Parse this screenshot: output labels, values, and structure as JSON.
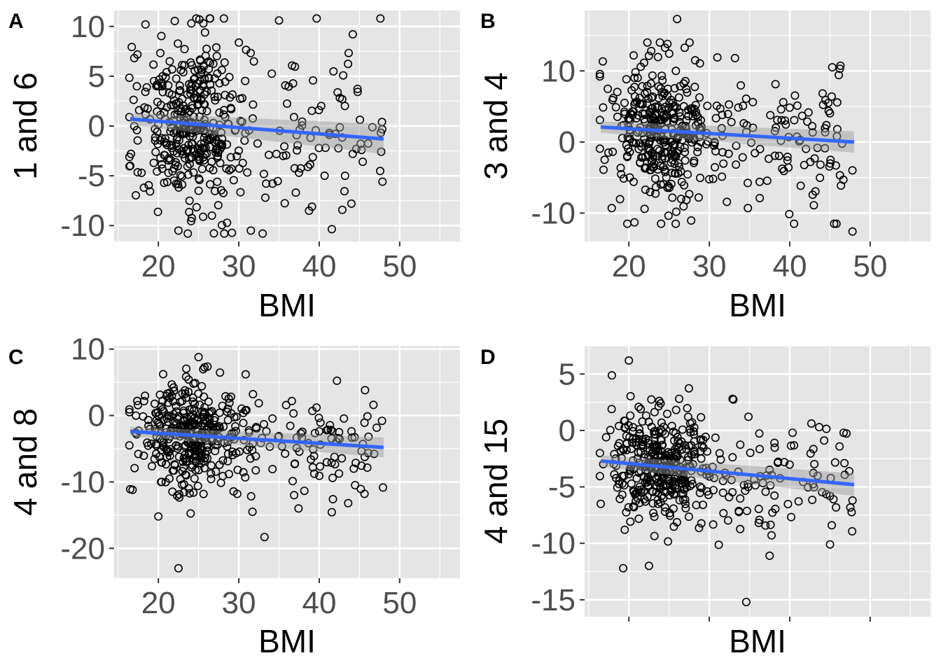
{
  "figure": {
    "background": "#ffffff",
    "panel_bg": "#e5e5e5",
    "grid_color": "#ffffff",
    "point_color": "#000000",
    "fit_color": "#3366ff",
    "band_color": "#999999"
  },
  "chart_data": [
    {
      "type": "scatter",
      "tag": "A",
      "xlabel": "BMI",
      "ylabel": "1 and 6",
      "xlim": [
        14.5,
        57.5
      ],
      "ylim": [
        -11.6,
        11.6
      ],
      "xticks": [
        20,
        30,
        40,
        50
      ],
      "xtick_labels": [
        "20",
        "30",
        "40",
        "50"
      ],
      "yticks": [
        -10,
        -5,
        0,
        5,
        10
      ],
      "ytick_labels": [
        "-10",
        "-5",
        "0",
        "5",
        "10"
      ],
      "fit": {
        "x": [
          16.5,
          48
        ],
        "y": [
          0.7,
          -1.3
        ],
        "band_lo": [
          0.1,
          -2.8
        ],
        "band_hi": [
          1.3,
          0.2
        ]
      },
      "points": {
        "n": 460,
        "seed": 11,
        "center": 24,
        "spread": 3.2,
        "tail": 0.22,
        "tailmax": 48,
        "ysd": 4.3,
        "ymin": -10.8,
        "ymax": 10.8
      },
      "extra_points": [
        [
          18.4,
          10.2
        ],
        [
          25.1,
          10.7
        ],
        [
          35,
          10.6
        ],
        [
          16.5,
          -4
        ],
        [
          22.5,
          -10.5
        ],
        [
          31.5,
          -10.5
        ],
        [
          33.3,
          -7.2
        ],
        [
          44,
          -7.8
        ],
        [
          47.8,
          0.4
        ],
        [
          16.6,
          -2.8
        ]
      ]
    },
    {
      "type": "scatter",
      "tag": "B",
      "xlabel": "BMI",
      "ylabel": "3 and 4",
      "xlim": [
        14.5,
        57.5
      ],
      "ylim": [
        -14,
        18.5
      ],
      "xticks": [
        20,
        30,
        40,
        50
      ],
      "xtick_labels": [
        "20",
        "30",
        "40",
        "50"
      ],
      "yticks": [
        -10,
        0,
        10
      ],
      "ytick_labels": [
        "-10",
        "0",
        "10"
      ],
      "fit": {
        "x": [
          16.5,
          48
        ],
        "y": [
          2.1,
          0
        ],
        "band_lo": [
          1.3,
          -1.5
        ],
        "band_hi": [
          2.9,
          1.5
        ]
      },
      "points": {
        "n": 460,
        "seed": 23,
        "center": 24,
        "spread": 3.2,
        "tail": 0.22,
        "tailmax": 48,
        "ysd": 4.5,
        "ymin": -11.5,
        "ymax": 14
      },
      "extra_points": [
        [
          26,
          17.3
        ],
        [
          47.8,
          -12.6
        ],
        [
          20.7,
          -11.3
        ],
        [
          34.8,
          -9.3
        ],
        [
          43,
          -8.9
        ],
        [
          44.8,
          5.5
        ],
        [
          33.2,
          11.8
        ],
        [
          31,
          11.9
        ],
        [
          22.3,
          14
        ],
        [
          24.8,
          13.8
        ]
      ]
    },
    {
      "type": "scatter",
      "tag": "C",
      "xlabel": "BMI",
      "ylabel": "4 and 8",
      "xlim": [
        14.5,
        57.5
      ],
      "ylim": [
        -24.5,
        10.5
      ],
      "xticks": [
        20,
        30,
        40,
        50
      ],
      "xtick_labels": [
        "20",
        "30",
        "40",
        "50"
      ],
      "yticks": [
        -20,
        -10,
        0,
        10
      ],
      "ytick_labels": [
        "-20",
        "-10",
        "0",
        "10"
      ],
      "fit": {
        "x": [
          16.5,
          48
        ],
        "y": [
          -2.4,
          -4.8
        ],
        "band_lo": [
          -3.1,
          -6.3
        ],
        "band_hi": [
          -1.7,
          -3.3
        ]
      },
      "points": {
        "n": 460,
        "seed": 37,
        "center": 24,
        "spread": 3.2,
        "tail": 0.22,
        "tailmax": 48,
        "ysd": 4.2,
        "ymin": -15,
        "ymax": 9
      },
      "extra_points": [
        [
          22.5,
          -23
        ],
        [
          20,
          -15.2
        ],
        [
          33.2,
          -18.3
        ],
        [
          31.7,
          -14.5
        ],
        [
          25,
          8.8
        ],
        [
          47.8,
          -0.8
        ],
        [
          43.6,
          -13.2
        ],
        [
          41.7,
          -12.6
        ],
        [
          16.5,
          -11.1
        ],
        [
          16.8,
          -11.2
        ]
      ]
    },
    {
      "type": "scatter",
      "tag": "D",
      "xlabel": "BMI",
      "ylabel": "4 and 15",
      "xlim": [
        14.5,
        57.5
      ],
      "ylim": [
        -16.5,
        7.5
      ],
      "xticks": [
        20,
        30,
        40,
        50
      ],
      "xtick_labels": [
        "",
        "",
        "",
        ""
      ],
      "yticks": [
        -15,
        -10,
        -5,
        0,
        5
      ],
      "ytick_labels": [
        "-15",
        "-10",
        "-5",
        "0",
        "5"
      ],
      "fit": {
        "x": [
          16.5,
          48
        ],
        "y": [
          -2.7,
          -4.8
        ],
        "band_lo": [
          -3.2,
          -5.8
        ],
        "band_hi": [
          -2.2,
          -3.8
        ]
      },
      "points": {
        "n": 460,
        "seed": 51,
        "center": 24,
        "spread": 3.2,
        "tail": 0.22,
        "tailmax": 48,
        "ysd": 2.6,
        "ymin": -12,
        "ymax": 5.5
      },
      "extra_points": [
        [
          20,
          6.2
        ],
        [
          34.6,
          -15.2
        ],
        [
          22.5,
          -12
        ],
        [
          37.5,
          -11.1
        ],
        [
          47.8,
          -6.2
        ],
        [
          45,
          -5.8
        ],
        [
          46.7,
          -0.2
        ],
        [
          32.9,
          2.8
        ],
        [
          16.5,
          -6.5
        ],
        [
          19.3,
          -12.2
        ]
      ]
    }
  ]
}
